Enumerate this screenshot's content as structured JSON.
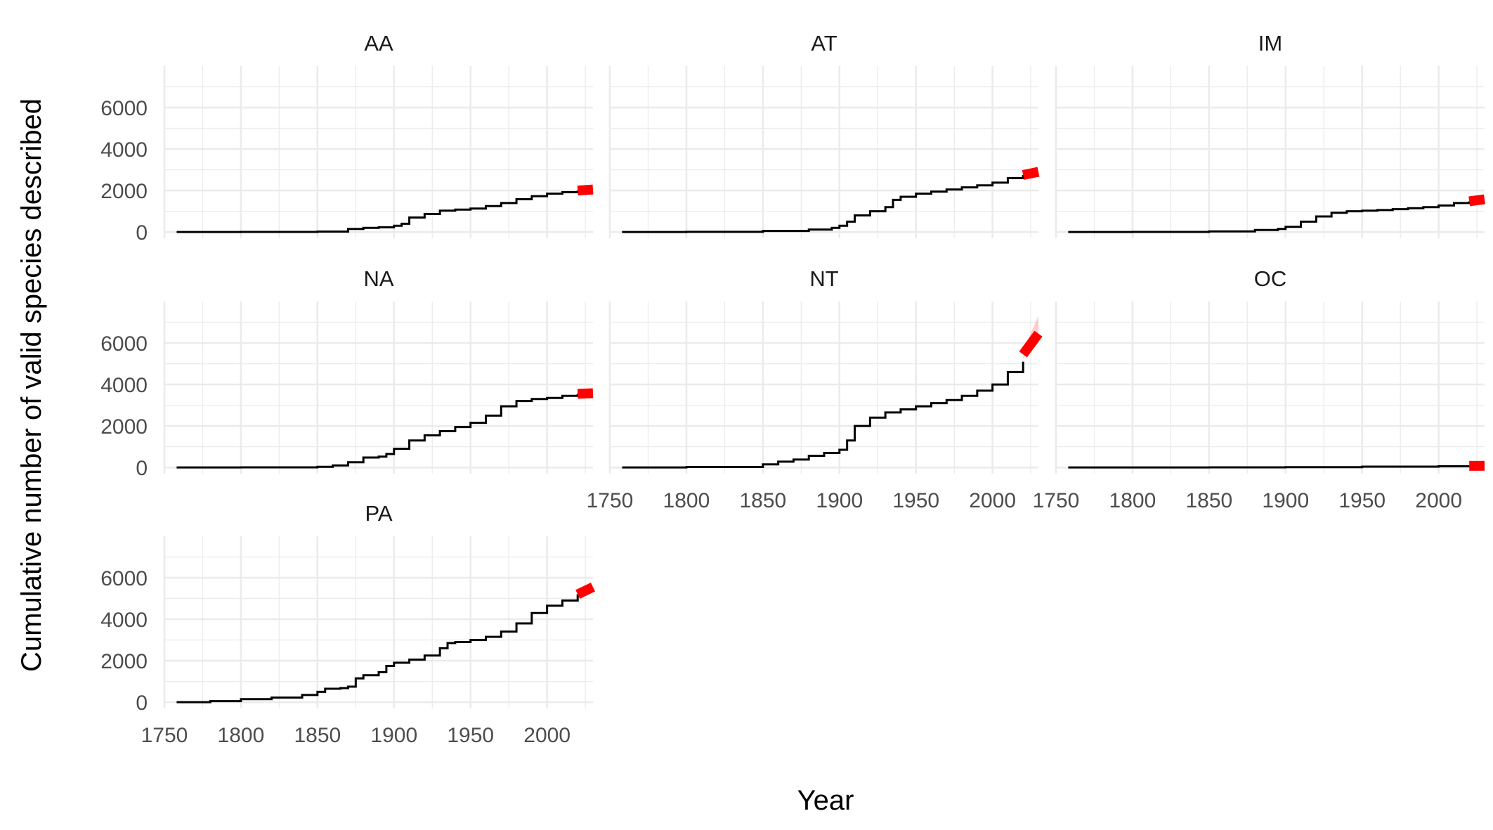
{
  "chart_data": {
    "type": "line",
    "xlabel": "Year",
    "ylabel": "Cumulative number of valid species described",
    "xlim": [
      1750,
      2030
    ],
    "ylim": [
      -300,
      8000
    ],
    "x_ticks": [
      1750,
      1800,
      1850,
      1900,
      1950,
      2000
    ],
    "y_ticks": [
      0,
      2000,
      4000,
      6000
    ],
    "grid": true,
    "colors": {
      "observed": "#000000",
      "projection": "#ff0000",
      "ribbon": "#ff000033",
      "grid": "#ebebeb"
    },
    "panels": [
      {
        "name": "AA",
        "observed": [
          [
            1758,
            0
          ],
          [
            1800,
            5
          ],
          [
            1850,
            20
          ],
          [
            1870,
            150
          ],
          [
            1880,
            200
          ],
          [
            1890,
            230
          ],
          [
            1900,
            300
          ],
          [
            1905,
            400
          ],
          [
            1910,
            700
          ],
          [
            1920,
            870
          ],
          [
            1930,
            1030
          ],
          [
            1940,
            1080
          ],
          [
            1950,
            1130
          ],
          [
            1960,
            1250
          ],
          [
            1970,
            1400
          ],
          [
            1980,
            1580
          ],
          [
            1990,
            1730
          ],
          [
            2000,
            1850
          ],
          [
            2010,
            1920
          ],
          [
            2020,
            2000
          ]
        ],
        "projection": [
          [
            2020,
            2000
          ],
          [
            2030,
            2050
          ]
        ],
        "ribbon": []
      },
      {
        "name": "AT",
        "observed": [
          [
            1758,
            0
          ],
          [
            1800,
            10
          ],
          [
            1850,
            50
          ],
          [
            1880,
            120
          ],
          [
            1895,
            200
          ],
          [
            1900,
            300
          ],
          [
            1905,
            500
          ],
          [
            1910,
            800
          ],
          [
            1920,
            1000
          ],
          [
            1930,
            1200
          ],
          [
            1935,
            1550
          ],
          [
            1940,
            1700
          ],
          [
            1950,
            1850
          ],
          [
            1960,
            1950
          ],
          [
            1970,
            2050
          ],
          [
            1980,
            2150
          ],
          [
            1990,
            2250
          ],
          [
            2000,
            2380
          ],
          [
            2010,
            2600
          ],
          [
            2020,
            2750
          ]
        ],
        "projection": [
          [
            2020,
            2750
          ],
          [
            2030,
            2900
          ]
        ],
        "ribbon": []
      },
      {
        "name": "IM",
        "observed": [
          [
            1758,
            0
          ],
          [
            1800,
            5
          ],
          [
            1850,
            30
          ],
          [
            1880,
            100
          ],
          [
            1895,
            150
          ],
          [
            1900,
            250
          ],
          [
            1910,
            500
          ],
          [
            1920,
            750
          ],
          [
            1930,
            930
          ],
          [
            1940,
            1000
          ],
          [
            1950,
            1030
          ],
          [
            1960,
            1060
          ],
          [
            1970,
            1100
          ],
          [
            1980,
            1150
          ],
          [
            1990,
            1200
          ],
          [
            2000,
            1280
          ],
          [
            2010,
            1400
          ],
          [
            2020,
            1480
          ]
        ],
        "projection": [
          [
            2020,
            1480
          ],
          [
            2030,
            1580
          ]
        ],
        "ribbon": []
      },
      {
        "name": "NA",
        "observed": [
          [
            1758,
            0
          ],
          [
            1800,
            5
          ],
          [
            1850,
            30
          ],
          [
            1860,
            100
          ],
          [
            1870,
            250
          ],
          [
            1880,
            480
          ],
          [
            1890,
            520
          ],
          [
            1895,
            650
          ],
          [
            1900,
            900
          ],
          [
            1910,
            1300
          ],
          [
            1920,
            1550
          ],
          [
            1930,
            1750
          ],
          [
            1940,
            1950
          ],
          [
            1950,
            2150
          ],
          [
            1960,
            2500
          ],
          [
            1970,
            2950
          ],
          [
            1980,
            3200
          ],
          [
            1990,
            3300
          ],
          [
            2000,
            3350
          ],
          [
            2010,
            3450
          ],
          [
            2020,
            3550
          ]
        ],
        "projection": [
          [
            2020,
            3550
          ],
          [
            2030,
            3580
          ]
        ],
        "ribbon": []
      },
      {
        "name": "NT",
        "observed": [
          [
            1758,
            0
          ],
          [
            1800,
            20
          ],
          [
            1850,
            150
          ],
          [
            1860,
            280
          ],
          [
            1870,
            380
          ],
          [
            1880,
            560
          ],
          [
            1890,
            700
          ],
          [
            1900,
            850
          ],
          [
            1905,
            1300
          ],
          [
            1910,
            2000
          ],
          [
            1920,
            2400
          ],
          [
            1930,
            2650
          ],
          [
            1940,
            2800
          ],
          [
            1950,
            2950
          ],
          [
            1960,
            3100
          ],
          [
            1970,
            3250
          ],
          [
            1980,
            3450
          ],
          [
            1990,
            3700
          ],
          [
            2000,
            4000
          ],
          [
            2010,
            4600
          ],
          [
            2020,
            5100
          ]
        ],
        "projection": [
          [
            2020,
            5450
          ],
          [
            2030,
            6450
          ]
        ],
        "ribbon": [
          [
            2020,
            5250,
            5650
          ],
          [
            2030,
            6000,
            7300
          ]
        ]
      },
      {
        "name": "OC",
        "observed": [
          [
            1758,
            0
          ],
          [
            1850,
            5
          ],
          [
            1900,
            15
          ],
          [
            1950,
            40
          ],
          [
            2000,
            60
          ],
          [
            2020,
            75
          ]
        ],
        "projection": [
          [
            2020,
            75
          ],
          [
            2030,
            80
          ]
        ],
        "ribbon": []
      },
      {
        "name": "PA",
        "observed": [
          [
            1758,
            0
          ],
          [
            1780,
            50
          ],
          [
            1800,
            150
          ],
          [
            1820,
            220
          ],
          [
            1840,
            350
          ],
          [
            1850,
            500
          ],
          [
            1855,
            650
          ],
          [
            1865,
            680
          ],
          [
            1870,
            750
          ],
          [
            1875,
            1150
          ],
          [
            1880,
            1300
          ],
          [
            1890,
            1450
          ],
          [
            1895,
            1750
          ],
          [
            1900,
            1900
          ],
          [
            1910,
            2050
          ],
          [
            1920,
            2250
          ],
          [
            1930,
            2600
          ],
          [
            1935,
            2850
          ],
          [
            1940,
            2900
          ],
          [
            1950,
            3000
          ],
          [
            1960,
            3150
          ],
          [
            1970,
            3400
          ],
          [
            1980,
            3800
          ],
          [
            1990,
            4300
          ],
          [
            2000,
            4650
          ],
          [
            2010,
            4900
          ],
          [
            2020,
            5200
          ]
        ],
        "projection": [
          [
            2020,
            5200
          ],
          [
            2030,
            5550
          ]
        ],
        "ribbon": []
      }
    ]
  }
}
